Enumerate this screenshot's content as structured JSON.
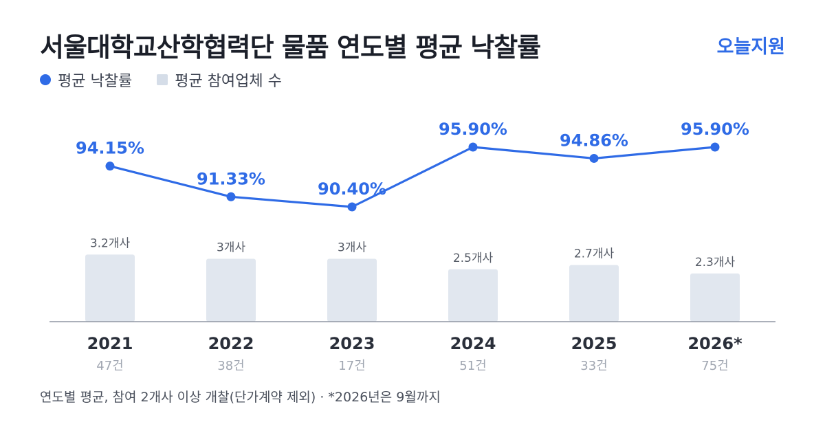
{
  "header": {
    "title": "서울대학교산학협력단 물품 연도별 평균 낙찰률",
    "brand": "오늘지원"
  },
  "legend": {
    "rate_label": "평균 낙찰률",
    "bidders_label": "평균 참여업체 수"
  },
  "colors": {
    "line": "#2f6be6",
    "bar": "#e1e7ef",
    "axis": "#8f96a3",
    "year_text": "#2a2f3a",
    "count_text": "#a0a6b1",
    "bar_label_text": "#555b66"
  },
  "chart_data": {
    "type": "bar",
    "categories": [
      "2021",
      "2022",
      "2023",
      "2024",
      "2025",
      "2026*"
    ],
    "counts": [
      "47건",
      "38건",
      "17건",
      "51건",
      "33건",
      "75건"
    ],
    "series": [
      {
        "name": "평균 낙찰률",
        "type": "line",
        "values": [
          94.15,
          91.33,
          90.4,
          95.9,
          94.86,
          95.9
        ],
        "labels": [
          "94.15%",
          "91.33%",
          "90.40%",
          "95.90%",
          "94.86%",
          "95.90%"
        ]
      },
      {
        "name": "평균 참여업체 수",
        "type": "bar",
        "values": [
          3.2,
          3,
          3,
          2.5,
          2.7,
          2.3
        ],
        "labels": [
          "3.2개사",
          "3개사",
          "3개사",
          "2.5개사",
          "2.7개사",
          "2.3개사"
        ]
      }
    ],
    "grid": false,
    "legend_position": "top-left"
  },
  "footnote": "연도별 평균, 참여 2개사 이상 개찰(단가계약 제외) · *2026년은 9월까지"
}
